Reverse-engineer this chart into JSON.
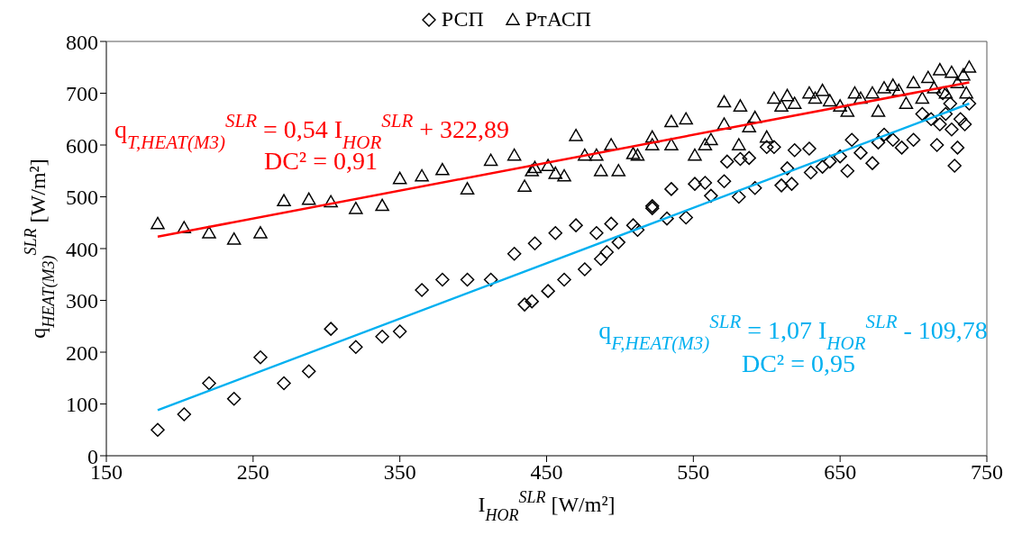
{
  "chart_data": {
    "type": "scatter",
    "xlabel": "I$_{HOR}$$^{SLR}$ [W/m²]",
    "ylabel": "q$_{HEAT(M3)}$$^{SLR}$ [W/m²]",
    "xlim": [
      150,
      750
    ],
    "xticks": [
      150,
      250,
      350,
      450,
      550,
      650,
      750
    ],
    "ylim": [
      0,
      800
    ],
    "yticks": [
      0,
      100,
      200,
      300,
      400,
      500,
      600,
      700,
      800
    ],
    "grid": false,
    "legend": "top",
    "annotations": [
      "q$_{T,HEAT(M3)}$$^{SLR}$ = 0,54 I$_{HOR}$$^{SLR}$ + 322,89",
      "DC² = 0,91",
      "q$_{F,HEAT(M3)}$$^{SLR}$ = 1,07 I$_{HOR}$$^{SLR}$ - 109,78",
      "DC² = 0,95"
    ],
    "series": [
      {
        "name": "РСП",
        "marker": "diamond",
        "color": "#000000",
        "x": [
          185,
          203,
          220,
          237,
          255,
          271,
          288,
          303,
          320,
          338,
          350,
          365,
          379,
          396,
          412,
          428,
          435,
          440,
          442,
          451,
          456,
          462,
          470,
          476,
          484,
          487,
          491,
          494,
          499,
          509,
          512,
          522,
          522,
          532,
          535,
          545,
          551,
          558,
          562,
          571,
          573,
          581,
          582,
          588,
          592,
          600,
          605,
          610,
          614,
          617,
          619,
          629,
          630,
          638,
          643,
          650,
          655,
          658,
          664,
          672,
          676,
          680,
          686,
          692,
          700,
          706,
          712,
          716,
          718,
          722,
          726,
          728,
          730,
          732,
          735,
          738,
          725,
          720
        ],
        "values": [
          50,
          80,
          140,
          110,
          190,
          140,
          163,
          245,
          210,
          230,
          240,
          320,
          340,
          340,
          340,
          390,
          292,
          298,
          410,
          318,
          430,
          340,
          445,
          360,
          430,
          380,
          393,
          448,
          412,
          445,
          436,
          478,
          482,
          458,
          515,
          460,
          525,
          527,
          502,
          530,
          568,
          500,
          573,
          575,
          517,
          596,
          596,
          522,
          555,
          525,
          590,
          593,
          547,
          558,
          568,
          578,
          550,
          610,
          585,
          565,
          605,
          620,
          610,
          595,
          610,
          660,
          650,
          600,
          640,
          660,
          630,
          560,
          595,
          650,
          640,
          680,
          680,
          700
        ]
      },
      {
        "name": "РтАСП",
        "marker": "triangle",
        "color": "#000000",
        "x": [
          185,
          203,
          220,
          237,
          255,
          271,
          288,
          303,
          320,
          338,
          350,
          365,
          379,
          396,
          412,
          428,
          435,
          440,
          442,
          451,
          456,
          462,
          470,
          476,
          484,
          487,
          494,
          499,
          509,
          512,
          522,
          522,
          535,
          535,
          545,
          551,
          558,
          562,
          571,
          571,
          581,
          582,
          588,
          592,
          600,
          605,
          610,
          614,
          619,
          629,
          633,
          638,
          643,
          650,
          655,
          660,
          664,
          672,
          676,
          680,
          686,
          690,
          695,
          700,
          706,
          710,
          714,
          718,
          722,
          726,
          730,
          734,
          738,
          736
        ],
        "values": [
          448,
          440,
          430,
          418,
          430,
          492,
          495,
          490,
          477,
          483,
          535,
          540,
          552,
          515,
          570,
          580,
          520,
          550,
          556,
          560,
          545,
          540,
          618,
          580,
          580,
          550,
          600,
          550,
          583,
          580,
          600,
          615,
          600,
          645,
          650,
          580,
          600,
          610,
          640,
          683,
          600,
          675,
          635,
          653,
          615,
          690,
          675,
          695,
          680,
          700,
          690,
          705,
          685,
          675,
          665,
          700,
          690,
          700,
          665,
          710,
          715,
          705,
          680,
          720,
          690,
          730,
          710,
          745,
          700,
          740,
          720,
          735,
          750,
          700
        ]
      },
      {
        "type": "line",
        "color": "#ff0000",
        "x": [
          185,
          738
        ],
        "values": [
          423,
          721
        ]
      },
      {
        "type": "line",
        "color": "#00b0f0",
        "x": [
          185,
          738
        ],
        "values": [
          88,
          680
        ]
      }
    ]
  }
}
